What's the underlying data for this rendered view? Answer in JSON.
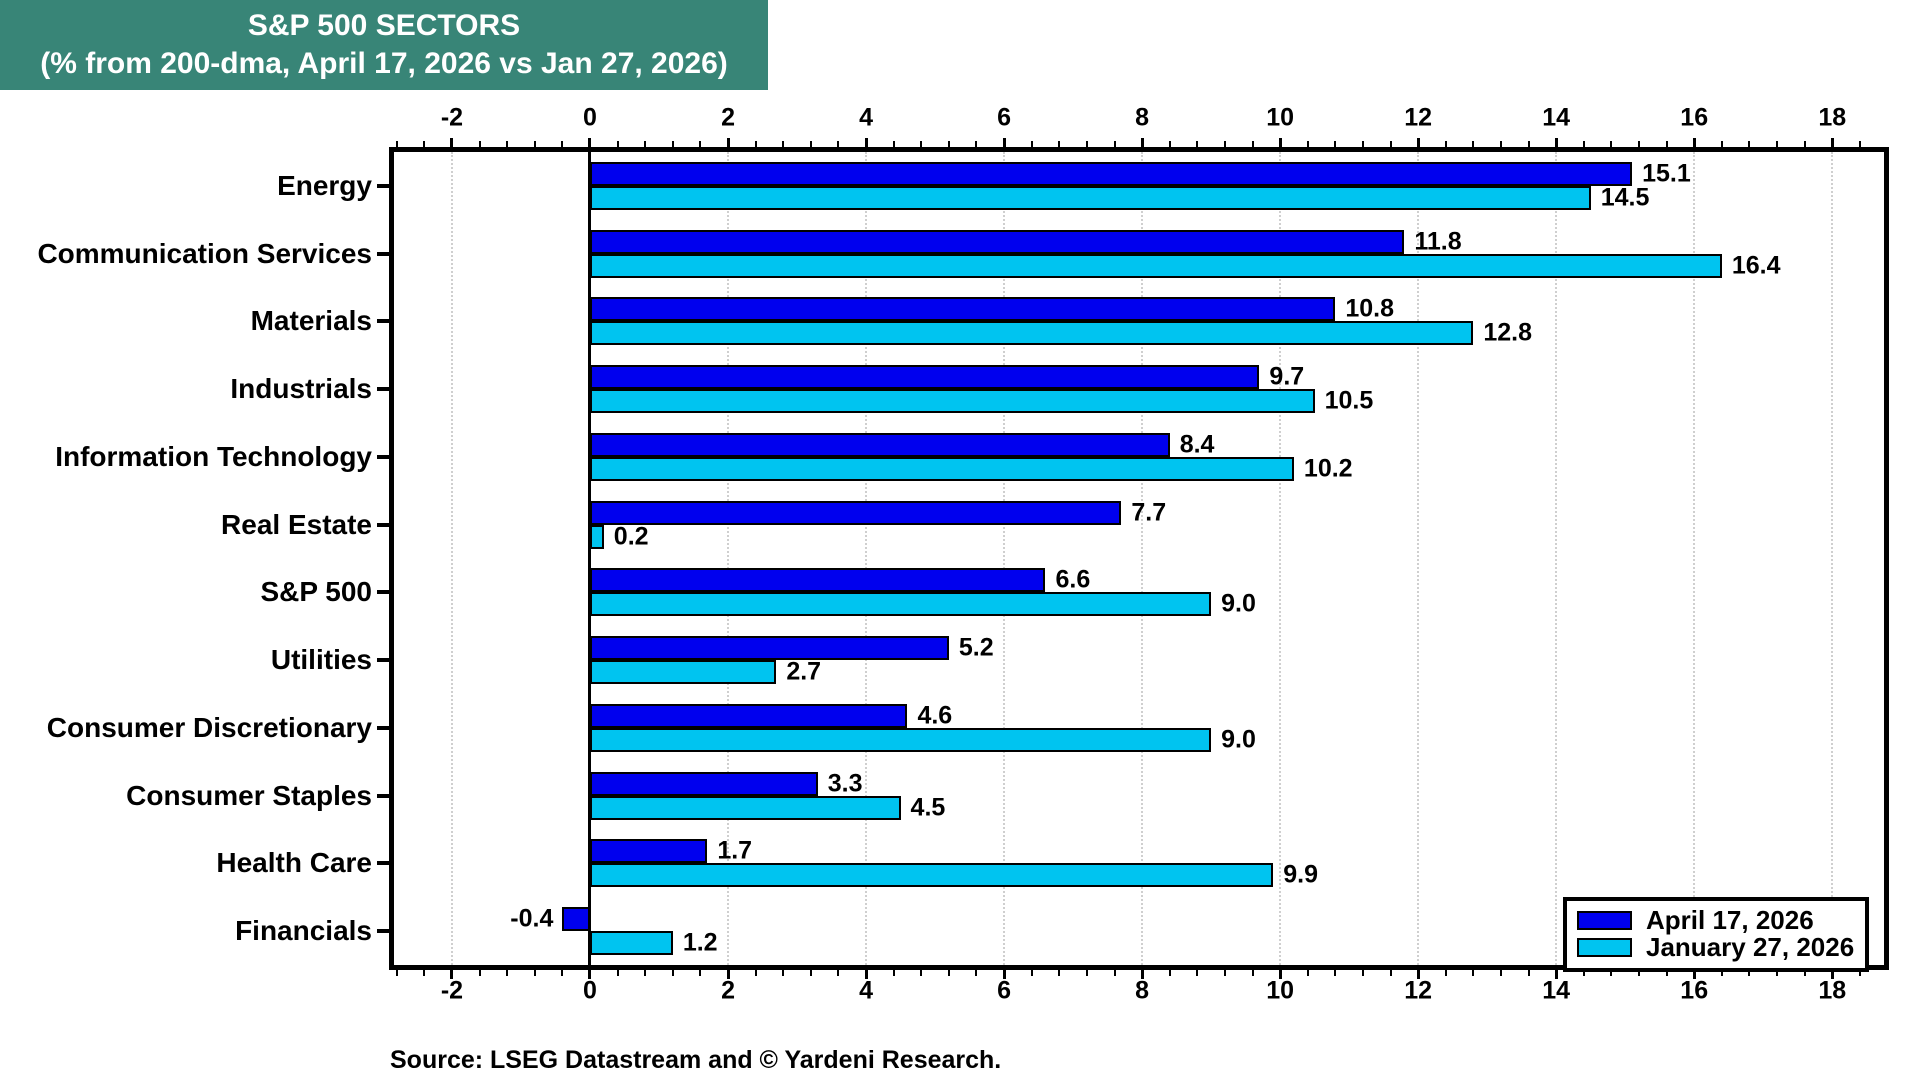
{
  "header": {
    "title": "S&P 500 SECTORS",
    "subtitle": "(% from 200-dma, April 17, 2026 vs Jan 27, 2026)"
  },
  "source": "Source: LSEG Datastream and © Yardeni Research.",
  "colors": {
    "title_bg": "#388577",
    "series_april": "#0000EE",
    "series_january": "#00C4F0",
    "grid": "#cfcfcf",
    "axis": "#000000"
  },
  "chart_data": {
    "type": "bar",
    "orientation": "horizontal",
    "title": "S&P 500 SECTORS",
    "subtitle": "(% from 200-dma, April 17, 2026 vs Jan 27, 2026)",
    "categories": [
      "Energy",
      "Communication Services",
      "Materials",
      "Industrials",
      "Information Technology",
      "Real Estate",
      "S&P 500",
      "Utilities",
      "Consumer Discretionary",
      "Consumer Staples",
      "Health Care",
      "Financials"
    ],
    "series": [
      {
        "name": "April 17, 2026",
        "color": "#0000EE",
        "values": [
          15.1,
          11.8,
          10.8,
          9.7,
          8.4,
          7.7,
          6.6,
          5.2,
          4.6,
          3.3,
          1.7,
          -0.4
        ]
      },
      {
        "name": "January 27, 2026",
        "color": "#00C4F0",
        "values": [
          14.5,
          16.4,
          12.8,
          10.5,
          10.2,
          0.2,
          9.0,
          2.7,
          9.0,
          4.5,
          9.9,
          1.2
        ]
      }
    ],
    "xlim": [
      -2.84,
      18.75
    ],
    "x_ticks": [
      -2,
      0,
      2,
      4,
      6,
      8,
      10,
      12,
      14,
      16,
      18
    ],
    "minor_tick_step": 0.4,
    "value_label_format": "0.1f",
    "grid": "vertical-dotted-at-major-ticks",
    "legend_position": "bottom-right"
  }
}
